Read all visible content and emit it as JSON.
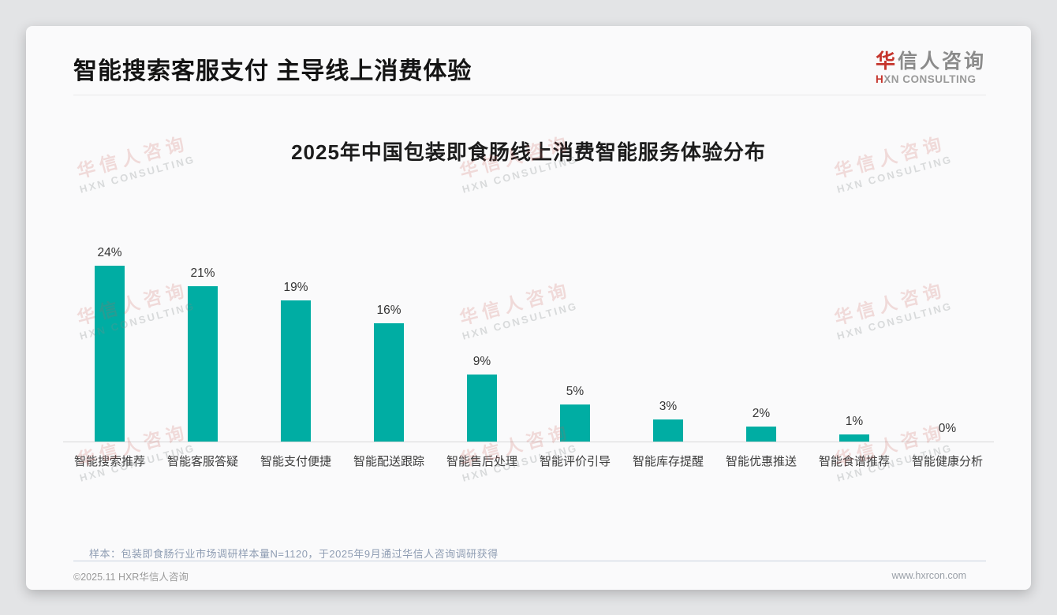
{
  "page": {
    "title": "智能搜索客服支付 主导线上消费体验",
    "logo": {
      "cn_accent": "华",
      "cn_rest": "信人咨询",
      "en_accent": "H",
      "en_rest": "XN CONSULTING"
    },
    "watermark": {
      "cn": "华信人咨询",
      "en": "HXN CONSULTING"
    },
    "note": "样本：包装即食肠行业市场调研样本量N=1120，于2025年9月通过华信人咨询调研获得",
    "footer": {
      "left": "©2025.11 HXR华信人咨询",
      "right": "www.hxrcon.com"
    }
  },
  "chart_data": {
    "type": "bar",
    "title": "2025年中国包装即食肠线上消费智能服务体验分布",
    "categories": [
      "智能搜索推荐",
      "智能客服答疑",
      "智能支付便捷",
      "智能配送跟踪",
      "智能售后处理",
      "智能评价引导",
      "智能库存提醒",
      "智能优惠推送",
      "智能食谱推荐",
      "智能健康分析"
    ],
    "values": [
      24,
      21,
      19,
      16,
      9,
      5,
      3,
      2,
      1,
      0
    ],
    "value_suffix": "%",
    "bar_color": "#00ADA3",
    "ylim": [
      0,
      26
    ],
    "xlabel": "",
    "ylabel": "",
    "grid": false,
    "legend": false,
    "value_labels": "above-bars"
  }
}
